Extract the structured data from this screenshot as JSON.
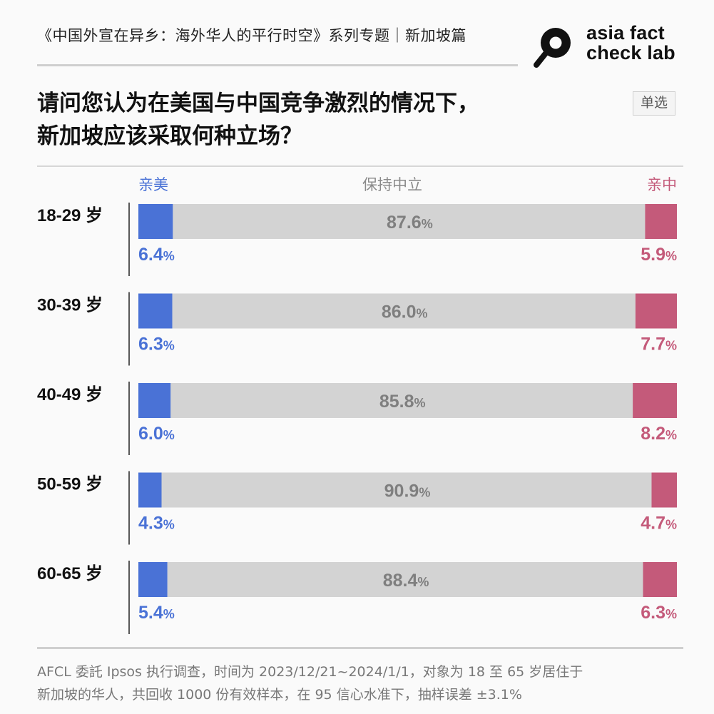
{
  "header": {
    "series_title": "《中国外宣在异乡：海外华人的平行时空》系列专题｜新加坡篇",
    "logo_line1": "asia fact",
    "logo_line2": "check lab"
  },
  "question": {
    "line1": "请问您认为在美国与中国竞争激烈的情况下，",
    "line2": "新加坡应该采取何种立场？",
    "tag": "单选"
  },
  "colors": {
    "pro_us": "#4a72d6",
    "neutral": "#d3d3d3",
    "pro_china": "#c45a7a",
    "neutral_label": "#7f7f7f"
  },
  "chart_data": {
    "type": "bar",
    "stacked": true,
    "orientation": "horizontal",
    "legend": [
      "亲美",
      "保持中立",
      "亲中"
    ],
    "categories": [
      "18-29 岁",
      "30-39 岁",
      "40-49 岁",
      "50-59 岁",
      "60-65 岁"
    ],
    "series": [
      {
        "name": "亲美",
        "values": [
          6.4,
          6.3,
          6.0,
          4.3,
          5.4
        ]
      },
      {
        "name": "保持中立",
        "values": [
          87.6,
          86.0,
          85.8,
          90.9,
          88.4
        ]
      },
      {
        "name": "亲中",
        "values": [
          5.9,
          7.7,
          8.2,
          4.7,
          6.3
        ]
      }
    ],
    "unit": "%"
  },
  "footnote": {
    "line1": "AFCL 委託 Ipsos 执行调查，时间为 2023/12/21~2024/1/1，对象为 18 至 65 岁居住于",
    "line2": "新加坡的华人，共回收 1000 份有效样本，在 95 信心水准下，抽样误差 ±3.1%"
  }
}
